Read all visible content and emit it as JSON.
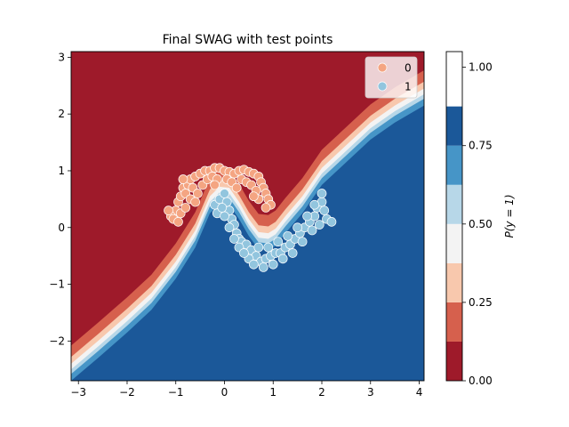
{
  "chart_data": {
    "type": "contour",
    "title": "Final SWAG with test points",
    "xlabel": "",
    "ylabel": "",
    "xlim": [
      -3.15,
      4.1
    ],
    "ylim": [
      -2.7,
      3.1
    ],
    "xticks": [
      -3,
      -2,
      -1,
      0,
      1,
      2,
      3,
      4
    ],
    "yticks": [
      -2,
      -1,
      0,
      1,
      2,
      3
    ],
    "grid": false,
    "legend": {
      "placement": "top-right",
      "entries": [
        {
          "label": "0",
          "color": "#f4a582"
        },
        {
          "label": "1",
          "color": "#92c5de"
        }
      ]
    },
    "colorbar": {
      "label": "P(y = 1)",
      "ticks": [
        0.0,
        0.25,
        0.5,
        0.75,
        1.0
      ],
      "tick_labels": [
        "0.00",
        "0.25",
        "0.50",
        "0.75",
        "1.00"
      ],
      "levels": [
        0.0,
        0.125,
        0.25,
        0.375,
        0.5,
        0.625,
        0.75,
        0.875,
        1.05
      ],
      "colors": [
        "#9e1a2a",
        "#d6604d",
        "#f8c8ad",
        "#f3f3f3",
        "#b7d7e8",
        "#4695c7",
        "#1b5899"
      ]
    },
    "boundary": {
      "x": [
        -3.15,
        -2.6,
        -2.0,
        -1.5,
        -1.0,
        -0.6,
        -0.3,
        -0.1,
        0.1,
        0.3,
        0.5,
        0.7,
        0.9,
        1.05,
        1.25,
        1.6,
        2.0,
        2.5,
        3.0,
        3.5,
        4.1
      ],
      "y": [
        -2.5,
        -2.1,
        -1.65,
        -1.25,
        -0.7,
        -0.15,
        0.45,
        0.62,
        0.6,
        0.35,
        0.05,
        -0.18,
        -0.2,
        -0.12,
        0.1,
        0.45,
        0.95,
        1.35,
        1.75,
        2.05,
        2.35
      ]
    },
    "series": [
      {
        "name": "0",
        "color": "#f4a582",
        "points": [
          [
            -1.0,
            0.3
          ],
          [
            -0.95,
            0.45
          ],
          [
            -0.9,
            0.55
          ],
          [
            -0.85,
            0.7
          ],
          [
            -0.75,
            0.75
          ],
          [
            -0.7,
            0.85
          ],
          [
            -0.6,
            0.9
          ],
          [
            -0.5,
            0.95
          ],
          [
            -0.4,
            1.0
          ],
          [
            -0.3,
            1.0
          ],
          [
            -0.2,
            1.05
          ],
          [
            -0.1,
            1.05
          ],
          [
            0.0,
            1.0
          ],
          [
            0.1,
            0.98
          ],
          [
            0.2,
            0.95
          ],
          [
            0.3,
            1.0
          ],
          [
            0.4,
            1.02
          ],
          [
            0.5,
            0.98
          ],
          [
            0.6,
            0.95
          ],
          [
            0.7,
            0.9
          ],
          [
            0.75,
            0.8
          ],
          [
            0.8,
            0.7
          ],
          [
            0.85,
            0.6
          ],
          [
            0.9,
            0.5
          ],
          [
            0.95,
            0.4
          ],
          [
            -1.1,
            0.2
          ],
          [
            -1.05,
            0.15
          ],
          [
            -0.95,
            0.1
          ],
          [
            -0.8,
            0.6
          ],
          [
            -0.65,
            0.7
          ],
          [
            -0.55,
            0.6
          ],
          [
            -0.45,
            0.75
          ],
          [
            -0.35,
            0.85
          ],
          [
            -0.25,
            0.9
          ],
          [
            -0.15,
            0.85
          ],
          [
            0.05,
            0.85
          ],
          [
            0.15,
            0.8
          ],
          [
            0.35,
            0.85
          ],
          [
            0.45,
            0.8
          ],
          [
            0.55,
            0.75
          ],
          [
            0.65,
            0.65
          ],
          [
            0.7,
            0.5
          ],
          [
            -0.9,
            0.25
          ],
          [
            -0.8,
            0.35
          ],
          [
            -0.7,
            0.5
          ],
          [
            -0.6,
            0.45
          ],
          [
            -1.15,
            0.3
          ],
          [
            -0.85,
            0.85
          ],
          [
            0.25,
            0.7
          ],
          [
            0.6,
            0.55
          ],
          [
            0.85,
            0.35
          ],
          [
            -0.2,
            0.75
          ]
        ]
      },
      {
        "name": "1",
        "color": "#92c5de",
        "points": [
          [
            -0.2,
            0.4
          ],
          [
            -0.15,
            0.25
          ],
          [
            -0.1,
            0.5
          ],
          [
            0.0,
            0.6
          ],
          [
            0.05,
            0.45
          ],
          [
            0.1,
            0.3
          ],
          [
            0.15,
            0.15
          ],
          [
            0.2,
            0.05
          ],
          [
            0.25,
            -0.1
          ],
          [
            0.3,
            -0.2
          ],
          [
            0.35,
            -0.25
          ],
          [
            0.45,
            -0.3
          ],
          [
            0.55,
            -0.4
          ],
          [
            0.65,
            -0.5
          ],
          [
            0.75,
            -0.6
          ],
          [
            0.85,
            -0.55
          ],
          [
            0.95,
            -0.5
          ],
          [
            1.05,
            -0.45
          ],
          [
            1.15,
            -0.45
          ],
          [
            1.25,
            -0.35
          ],
          [
            1.35,
            -0.3
          ],
          [
            1.45,
            -0.2
          ],
          [
            1.55,
            -0.1
          ],
          [
            1.65,
            0.0
          ],
          [
            1.75,
            0.1
          ],
          [
            1.85,
            0.2
          ],
          [
            1.9,
            0.35
          ],
          [
            2.0,
            0.45
          ],
          [
            2.05,
            0.3
          ],
          [
            2.1,
            0.15
          ],
          [
            0.0,
            0.2
          ],
          [
            0.1,
            0.0
          ],
          [
            0.2,
            -0.2
          ],
          [
            0.3,
            -0.35
          ],
          [
            0.5,
            -0.55
          ],
          [
            0.6,
            -0.65
          ],
          [
            0.8,
            -0.7
          ],
          [
            1.0,
            -0.65
          ],
          [
            1.2,
            -0.55
          ],
          [
            1.4,
            -0.45
          ],
          [
            1.6,
            -0.25
          ],
          [
            1.8,
            -0.05
          ],
          [
            1.95,
            0.05
          ],
          [
            2.0,
            0.6
          ],
          [
            -0.05,
            0.35
          ],
          [
            0.4,
            -0.45
          ],
          [
            0.7,
            -0.35
          ],
          [
            0.9,
            -0.35
          ],
          [
            1.1,
            -0.25
          ],
          [
            1.3,
            -0.15
          ],
          [
            1.5,
            0.0
          ],
          [
            1.7,
            0.2
          ],
          [
            1.85,
            0.4
          ],
          [
            2.2,
            0.1
          ]
        ]
      }
    ]
  }
}
